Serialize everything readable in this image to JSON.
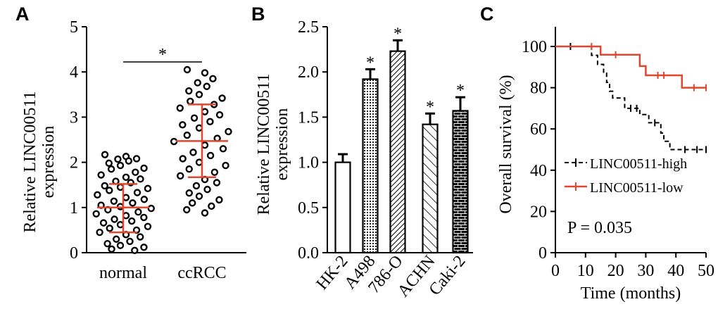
{
  "chart_data": [
    {
      "panel": "A",
      "type": "scatter",
      "ylabel_line1": "Relative LINC00511",
      "ylabel_line2": "expression",
      "ylim": [
        0,
        5
      ],
      "yticks": [
        "0",
        "1",
        "2",
        "3",
        "4",
        "5"
      ],
      "categories": [
        "normal",
        "ccRCC"
      ],
      "significance": "*",
      "groups": [
        {
          "name": "normal",
          "mean": 1.0,
          "sd_low": 0.45,
          "sd_high": 1.52,
          "points": [
            2.17,
            2.13,
            2.08,
            2.07,
            2.03,
            1.98,
            1.93,
            1.87,
            1.85,
            1.78,
            1.72,
            1.67,
            1.63,
            1.58,
            1.55,
            1.48,
            1.45,
            1.42,
            1.38,
            1.33,
            1.28,
            1.22,
            1.18,
            1.14,
            1.1,
            1.05,
            1.02,
            0.98,
            0.95,
            0.9,
            0.86,
            0.82,
            0.78,
            0.74,
            0.7,
            0.66,
            0.62,
            0.58,
            0.54,
            0.5,
            0.45,
            0.4,
            0.35,
            0.3,
            0.25,
            0.2,
            0.16,
            0.12,
            0.08,
            0.05
          ]
        },
        {
          "name": "ccRCC",
          "mean": 2.47,
          "sd_low": 1.67,
          "sd_high": 3.28,
          "points": [
            4.05,
            3.98,
            3.85,
            3.76,
            3.68,
            3.58,
            3.5,
            3.42,
            3.35,
            3.28,
            3.2,
            3.12,
            3.05,
            2.98,
            2.9,
            2.83,
            2.76,
            2.68,
            2.6,
            2.53,
            2.46,
            2.38,
            2.3,
            2.22,
            2.15,
            2.08,
            2.0,
            1.93,
            1.85,
            1.78,
            1.7,
            1.62,
            1.55,
            1.48,
            1.4,
            1.32,
            1.25,
            1.17,
            1.1,
            1.03,
            0.95,
            0.88
          ]
        }
      ]
    },
    {
      "panel": "B",
      "type": "bar",
      "ylabel_line1": "Relative LINC00511",
      "ylabel_line2": "expression",
      "ylim": [
        0,
        2.5
      ],
      "yticks": [
        "0.0",
        "0.5",
        "1.0",
        "1.5",
        "2.0",
        "2.5"
      ],
      "categories": [
        "HK-2",
        "A498",
        "786-O",
        "ACHN",
        "Caki-2"
      ],
      "values": [
        1.0,
        1.92,
        2.23,
        1.42,
        1.57
      ],
      "errors": [
        0.09,
        0.11,
        0.12,
        0.12,
        0.15
      ],
      "significance": [
        "",
        "*",
        "*",
        "*",
        "*"
      ],
      "patterns": [
        "none",
        "dots",
        "diagonal",
        "hatch",
        "brick"
      ]
    },
    {
      "panel": "C",
      "type": "line",
      "xlabel": "Time (months)",
      "ylabel": "Overall survival (%)",
      "xlim": [
        0,
        50
      ],
      "ylim": [
        0,
        100
      ],
      "xticks": [
        "0",
        "10",
        "20",
        "30",
        "40",
        "50"
      ],
      "yticks": [
        "0",
        "20",
        "40",
        "60",
        "80",
        "100"
      ],
      "annotation": "P = 0.035",
      "series": [
        {
          "name": "LINC00511-high",
          "style": "dashed",
          "color": "#000000",
          "steps": [
            [
              0,
              100
            ],
            [
              11,
              100
            ],
            [
              12,
              95.7
            ],
            [
              14,
              91.3
            ],
            [
              16,
              87
            ],
            [
              17,
              82.6
            ],
            [
              18,
              78.3
            ],
            [
              19,
              75
            ],
            [
              23,
              70
            ],
            [
              28,
              67
            ],
            [
              31,
              63
            ],
            [
              35,
              58
            ],
            [
              36,
              54
            ],
            [
              38,
              50
            ],
            [
              50,
              50
            ]
          ],
          "censored": [
            [
              5,
              100
            ],
            [
              25,
              70
            ],
            [
              27,
              70
            ],
            [
              33,
              63
            ],
            [
              43,
              50
            ],
            [
              47,
              50
            ],
            [
              50,
              50
            ]
          ]
        },
        {
          "name": "LINC00511-low",
          "style": "solid",
          "color": "#e2472e",
          "steps": [
            [
              0,
              100
            ],
            [
              15,
              100
            ],
            [
              15,
              96
            ],
            [
              28,
              96
            ],
            [
              28,
              90.5
            ],
            [
              30,
              90.5
            ],
            [
              30,
              86
            ],
            [
              42,
              86
            ],
            [
              42,
              80
            ],
            [
              50,
              80
            ]
          ],
          "censored": [
            [
              12,
              100
            ],
            [
              20,
              96
            ],
            [
              34,
              86
            ],
            [
              36,
              86
            ],
            [
              46,
              80
            ],
            [
              50,
              80
            ]
          ]
        }
      ]
    }
  ],
  "panel_labels": {
    "A": "A",
    "B": "B",
    "C": "C"
  },
  "colors": {
    "accent": "#e2472e",
    "ink": "#000000"
  }
}
